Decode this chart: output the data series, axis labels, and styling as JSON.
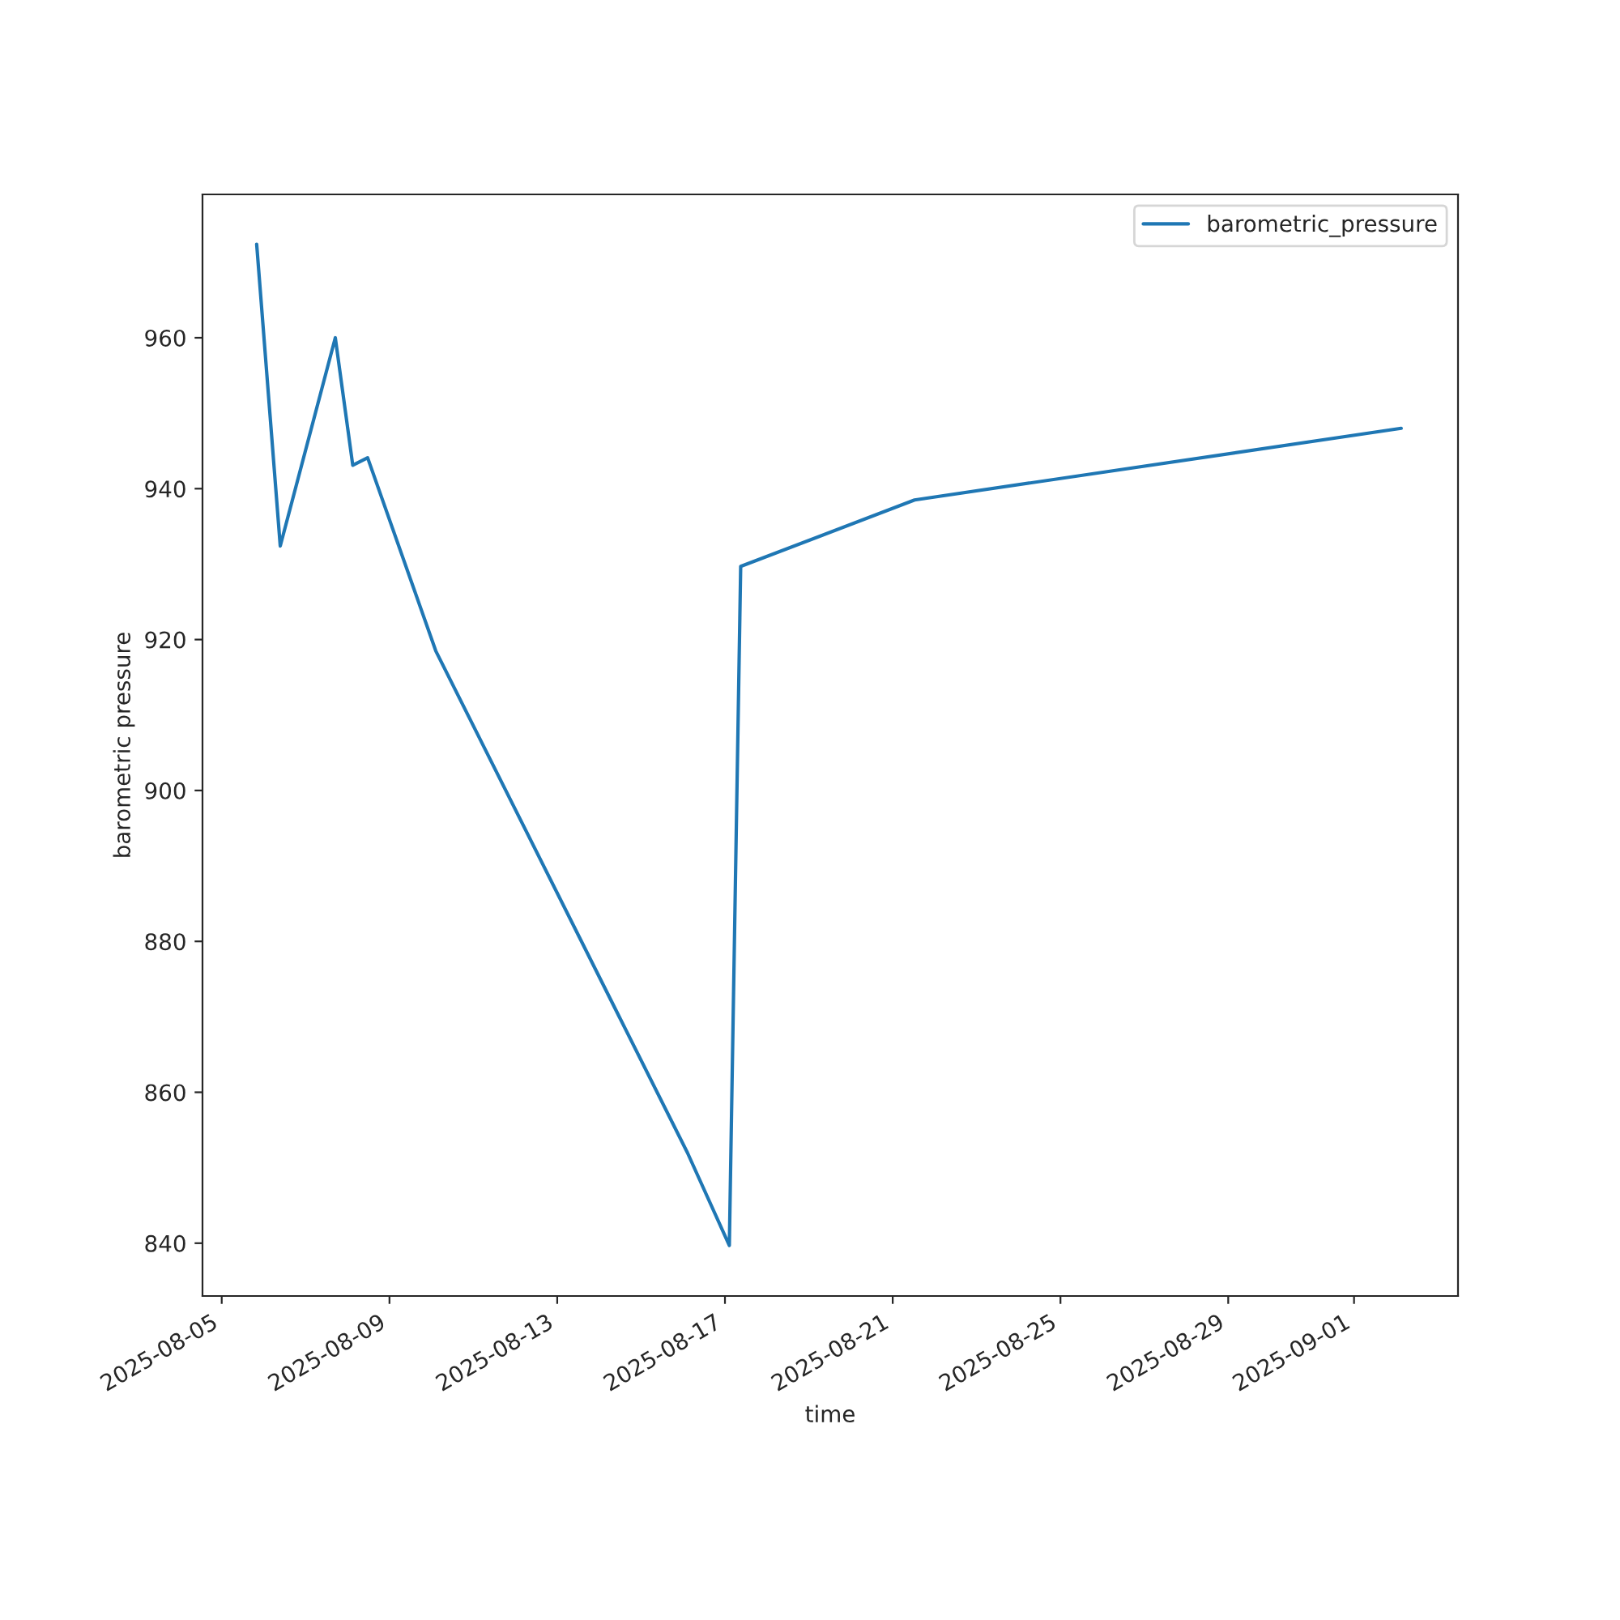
{
  "chart_data": {
    "type": "line",
    "xlabel": "time",
    "ylabel": "barometric pressure",
    "x": [
      "2025-08-05T20:00",
      "2025-08-06T09:30",
      "2025-08-07T17:00",
      "2025-08-08T03:00",
      "2025-08-08T11:30",
      "2025-08-10T02:30",
      "2025-08-16T02:30",
      "2025-08-17T02:30",
      "2025-08-17T09:00",
      "2025-08-21T12:30",
      "2025-09-02T03:00"
    ],
    "series": [
      {
        "name": "barometric_pressure",
        "color": "#1f77b4",
        "values": [
          972.4,
          932.4,
          960,
          943.1,
          944.1,
          918.5,
          852,
          839.7,
          929.7,
          938.5,
          948.0
        ]
      }
    ],
    "xlim": [
      "2025-08-04T13:00",
      "2025-09-03T11:30"
    ],
    "ylim": [
      833,
      979
    ],
    "xticks": [
      "2025-08-05",
      "2025-08-09",
      "2025-08-13",
      "2025-08-17",
      "2025-08-21",
      "2025-08-25",
      "2025-08-29",
      "2025-09-01"
    ],
    "yticks": [
      840,
      860,
      880,
      900,
      920,
      940,
      960
    ],
    "legend": "top right",
    "grid": false,
    "marker": "none",
    "line_style": "solid"
  }
}
